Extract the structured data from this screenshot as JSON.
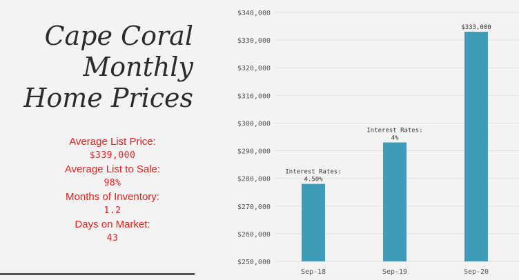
{
  "title_lines": [
    "Cape Coral",
    "Monthly",
    "Home Prices"
  ],
  "stats": {
    "avg_list_price_label": "Average List Price:",
    "avg_list_price_value": "$339,000",
    "avg_list_to_sale_label": "Average List to Sale:",
    "avg_list_to_sale_value": "98%",
    "months_inventory_label": "Months of Inventory:",
    "months_inventory_value": "1.2",
    "days_on_market_label": "Days on Market:",
    "days_on_market_value": "43"
  },
  "colors": {
    "bar": "#3f9cb8",
    "stats_text": "#e02020",
    "grid": "#dddddd",
    "axis_text": "#555555"
  },
  "chart_data": {
    "type": "bar",
    "categories": [
      "Sep-18",
      "Sep-19",
      "Sep-20"
    ],
    "values": [
      278000,
      293000,
      333000
    ],
    "ylim": [
      250000,
      340000
    ],
    "yticks": [
      250000,
      260000,
      270000,
      280000,
      290000,
      300000,
      310000,
      320000,
      330000,
      340000
    ],
    "ytick_labels": [
      "$250,000",
      "$260,000",
      "$270,000",
      "$280,000",
      "$290,000",
      "$300,000",
      "$310,000",
      "$320,000",
      "$330,000",
      "$340,000"
    ],
    "grid": true,
    "bar_annotations": [
      [
        "Interest Rates:",
        "4.50%"
      ],
      [
        "Interest Rates:",
        "4%"
      ],
      [
        "$333,000"
      ]
    ]
  }
}
